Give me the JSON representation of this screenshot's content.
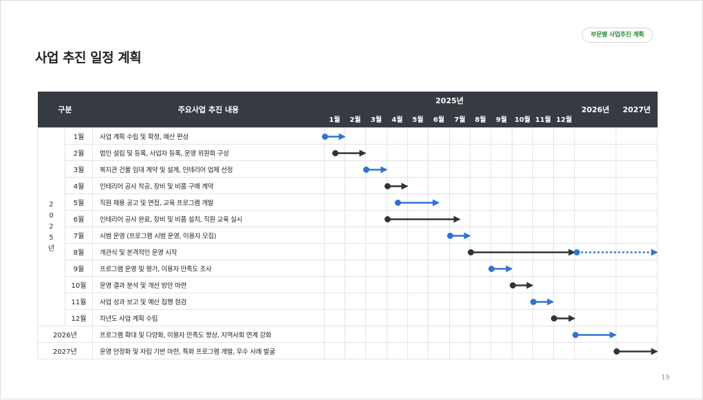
{
  "header": {
    "title": "사업 추진 일정 계획",
    "badge": "부문별 사업추진 계획",
    "page_number": "19"
  },
  "table": {
    "col_category": "구분",
    "col_content": "주요사업 추진 내용",
    "year_2025": "2025년",
    "months": [
      "1월",
      "2월",
      "3월",
      "4월",
      "5월",
      "6월",
      "7월",
      "8월",
      "9월",
      "10월",
      "11월",
      "12월"
    ],
    "year_2026": "2026년",
    "year_2027": "2027년",
    "year_group_2025": "2\n0\n2\n5\n년",
    "rows": [
      {
        "label": "1월",
        "task": "사업 계획 수립 및 확정, 예산 편성",
        "start": 1.0,
        "end": 2.0,
        "color": "blue"
      },
      {
        "label": "2월",
        "task": "법인 설립 및 등록, 사업자 등록, 운영 위원회 구성",
        "start": 1.5,
        "end": 3.0,
        "color": "dark"
      },
      {
        "label": "3월",
        "task": "복지관 건물 임대 계약 및 설계, 인테리어 업체 선정",
        "start": 3.0,
        "end": 4.0,
        "color": "blue"
      },
      {
        "label": "4월",
        "task": "인테리어 공사 착공, 장비 및 비품 구매 계약",
        "start": 4.0,
        "end": 5.0,
        "color": "dark"
      },
      {
        "label": "5월",
        "task": "직원 채용 공고 및 면접, 교육 프로그램 개발",
        "start": 4.5,
        "end": 6.5,
        "color": "blue"
      },
      {
        "label": "6월",
        "task": "인테리어 공사 완료, 장비 및 비품 설치, 직원 교육 실시",
        "start": 4.0,
        "end": 7.5,
        "color": "dark"
      },
      {
        "label": "7월",
        "task": "시범 운영 (프로그램 시범 운영, 이용자 모집)",
        "start": 7.0,
        "end": 8.0,
        "color": "blue"
      },
      {
        "label": "8월",
        "task": "개관식 및 본격적인 운영 시작",
        "start": 8.0,
        "end": 13.0,
        "color": "dark",
        "continues": true
      },
      {
        "label": "9월",
        "task": "프로그램 운영 및 평가, 이용자 만족도 조사",
        "start": 9.0,
        "end": 10.0,
        "color": "blue"
      },
      {
        "label": "10월",
        "task": "운영 결과 분석 및 개선 방안 마련",
        "start": 10.0,
        "end": 11.0,
        "color": "dark"
      },
      {
        "label": "11월",
        "task": "사업 성과 보고 및 예산 집행 점검",
        "start": 11.0,
        "end": 12.0,
        "color": "blue"
      },
      {
        "label": "12월",
        "task": "차년도 사업 계획 수립",
        "start": 12.0,
        "end": 13.0,
        "color": "dark"
      }
    ],
    "year_rows": [
      {
        "label": "2026년",
        "task": "프로그램 확대 및 다양화, 이용자 만족도 향상, 지역사회 연계 강화",
        "start": 13.0,
        "end": 15.0,
        "color": "blue"
      },
      {
        "label": "2027년",
        "task": "운영 안정화 및 자립 기반 마련, 특화 프로그램 개발, 우수 사례 발굴",
        "start": 15.0,
        "end": 17.0,
        "color": "dark"
      }
    ],
    "colors": {
      "blue": "#2f74d0",
      "dark": "#2f3338",
      "header_bg": "#363b42",
      "badge_text": "#2e8b3e"
    }
  }
}
